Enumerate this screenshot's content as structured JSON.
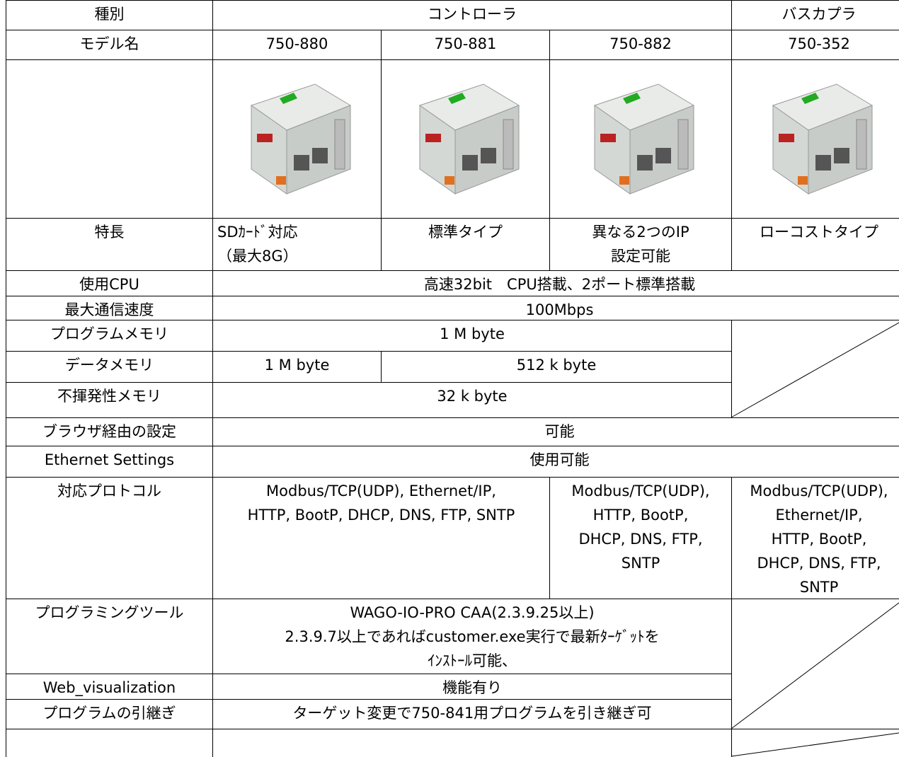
{
  "table": {
    "rows": [
      [
        "種別",
        "コントローラ",
        "バスカプラ"
      ],
      [
        "モデル名",
        "750-880",
        "750-881",
        "750-882",
        "750-352"
      ],
      [
        "特長",
        [
          "SDｶｰﾄﾞ対応",
          "（最大8G）"
        ],
        "標準タイプ",
        [
          "異なる2つのIP",
          "設定可能"
        ],
        "ローコストタイプ"
      ],
      [
        "使用CPU",
        "高速32bit　CPU搭載、2ポート標準搭載"
      ],
      [
        "最大通信速度",
        "100Mbps"
      ],
      [
        "プログラムメモリ",
        "1 M byte"
      ],
      [
        "データメモリ",
        "1 M byte",
        "512 k byte"
      ],
      [
        "不揮発性メモリ",
        "32 k byte"
      ],
      [
        "ブラウザ経由の設定",
        "可能"
      ],
      [
        "Ethernet Settings",
        "使用可能"
      ],
      [
        "対応プロトコル",
        [
          "Modbus/TCP(UDP), Ethernet/IP,",
          "HTTP, BootP, DHCP, DNS, FTP, SNTP"
        ],
        [
          "Modbus/TCP(UDP),",
          "HTTP, BootP,",
          "DHCP, DNS, FTP,",
          "SNTP"
        ],
        [
          "Modbus/TCP(UDP),",
          "Ethernet/IP,",
          "HTTP, BootP,",
          "DHCP, DNS, FTP,",
          "SNTP"
        ]
      ],
      [
        "プログラミングツール",
        [
          "WAGO-IO-PRO CAA(2.3.9.25以上)",
          "2.3.9.7以上であればcustomer.exe実行で最新ﾀｰｹﾞｯﾄを",
          "ｲﾝｽﾄｰﾙ可能、"
        ]
      ],
      [
        "Web_visualization",
        "機能有り"
      ],
      [
        "プログラムの引継ぎ",
        "ターゲット変更で750-841用プログラムを引き継ぎ可"
      ]
    ]
  }
}
